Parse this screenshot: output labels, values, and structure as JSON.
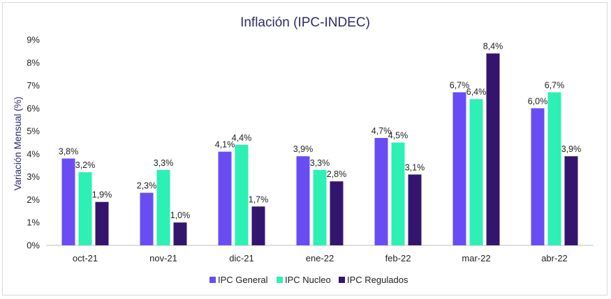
{
  "chart_data": {
    "type": "bar",
    "title": "Inflación (IPC-INDEC)",
    "xlabel": "",
    "ylabel": "Variación Mensual (%)",
    "ylim": [
      0,
      9
    ],
    "yticks": [
      "0%",
      "1%",
      "2%",
      "3%",
      "4%",
      "5%",
      "6%",
      "7%",
      "8%",
      "9%"
    ],
    "grid": false,
    "legend_position": "bottom",
    "categories": [
      "oct-21",
      "nov-21",
      "dic-21",
      "ene-22",
      "feb-22",
      "mar-22",
      "abr-22"
    ],
    "series": [
      {
        "name": "IPC General",
        "color": "#6a4cf5",
        "values": [
          3.8,
          2.3,
          4.1,
          3.9,
          4.7,
          6.7,
          6.0
        ],
        "labels": [
          "3,8%",
          "2,3%",
          "4,1%",
          "3,9%",
          "4,7%",
          "6,7%",
          "6,0%"
        ]
      },
      {
        "name": "IPC Nucleo",
        "color": "#2cf0b4",
        "values": [
          3.2,
          3.3,
          4.4,
          3.3,
          4.5,
          6.4,
          6.7
        ],
        "labels": [
          "3,2%",
          "3,3%",
          "4,4%",
          "3,3%",
          "4,5%",
          "6,4%",
          "6,7%"
        ]
      },
      {
        "name": "IPC Regulados",
        "color": "#34156e",
        "values": [
          1.9,
          1.0,
          1.7,
          2.8,
          3.1,
          8.4,
          3.9
        ],
        "labels": [
          "1,9%",
          "1,0%",
          "1,7%",
          "2,8%",
          "3,1%",
          "8,4%",
          "3,9%"
        ]
      }
    ]
  }
}
